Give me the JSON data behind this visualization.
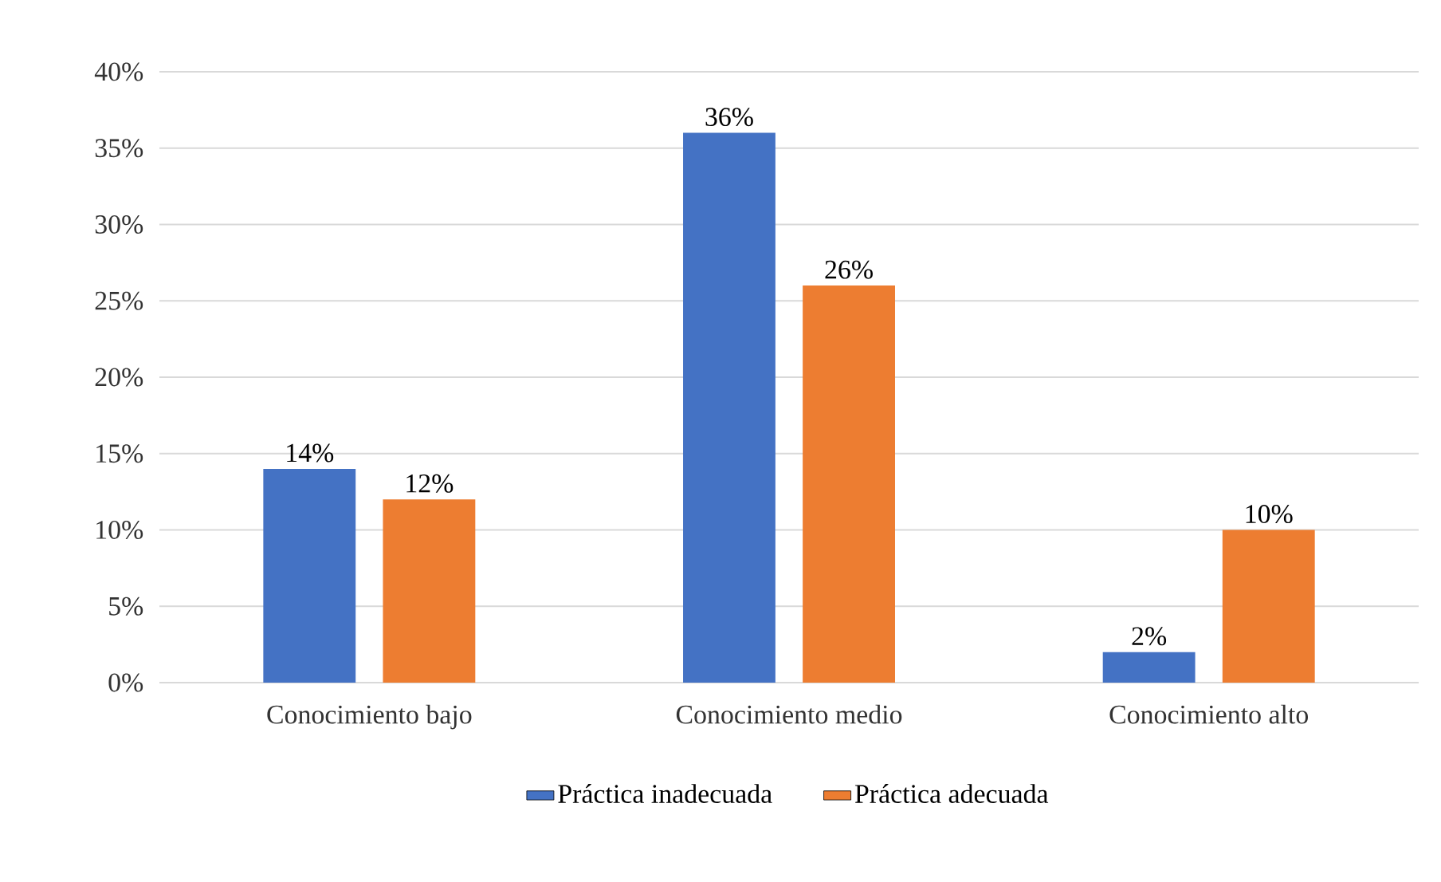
{
  "chart_data": {
    "type": "bar",
    "categories": [
      "Conocimiento bajo",
      "Conocimiento medio",
      "Conocimiento alto"
    ],
    "series": [
      {
        "name": "Práctica inadecuada",
        "color": "#4472c4",
        "values": [
          14,
          36,
          2
        ],
        "value_labels": [
          "14%",
          "36%",
          "2%"
        ]
      },
      {
        "name": "Práctica adecuada",
        "color": "#ed7d31",
        "values": [
          12,
          26,
          10
        ],
        "value_labels": [
          "12%",
          "26%",
          "10%"
        ]
      }
    ],
    "ylim": [
      0,
      40
    ],
    "yticks": [
      {
        "value": 0,
        "label": "0%"
      },
      {
        "value": 5,
        "label": "5%"
      },
      {
        "value": 10,
        "label": "10%"
      },
      {
        "value": 15,
        "label": "15%"
      },
      {
        "value": 20,
        "label": "20%"
      },
      {
        "value": 25,
        "label": "25%"
      },
      {
        "value": 30,
        "label": "30%"
      },
      {
        "value": 35,
        "label": "35%"
      },
      {
        "value": 40,
        "label": "40%"
      }
    ],
    "grid": "y",
    "legend": "bottom"
  }
}
